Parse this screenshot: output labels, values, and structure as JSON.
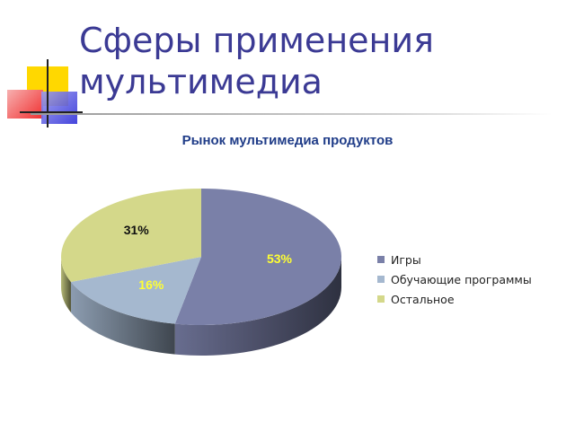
{
  "slide": {
    "title_line1": "Сферы применения",
    "title_line2": "мультимедиа"
  },
  "colors": {
    "title": "#3b3a94",
    "deco_yellow": "#ffd800",
    "deco_red": "#f03030",
    "deco_blue": "#3030d8"
  },
  "chart_data": {
    "type": "pie",
    "title": "Рынок мультимедиа продуктов",
    "three_d": true,
    "legend_position": "right",
    "categories": [
      "Игры",
      "Обучающие программы",
      "Остальное"
    ],
    "values": [
      53,
      16,
      31
    ],
    "data_labels": [
      "53%",
      "16%",
      "31%"
    ],
    "colors": [
      "#7a80a8",
      "#a5b8cf",
      "#d4d88a"
    ],
    "label_colors": [
      "#ffff33",
      "#ffff33",
      "#111111"
    ]
  }
}
